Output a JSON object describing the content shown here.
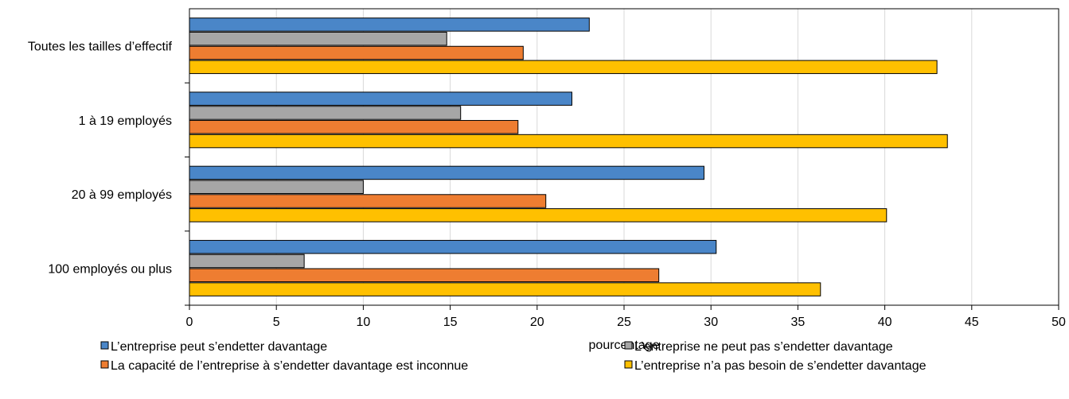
{
  "chart_data": {
    "type": "bar",
    "orientation": "horizontal",
    "categories": [
      "Toutes les tailles d’effectif",
      "1 à 19 employés",
      "20 à 99 employés",
      "100 employés ou plus"
    ],
    "series": [
      {
        "name": "L’entreprise peut s’endetter davantage",
        "color": "#4a86c8",
        "values": [
          23.0,
          22.0,
          29.6,
          30.3
        ]
      },
      {
        "name": "L’entreprise ne peut pas s’endetter davantage",
        "color": "#a6a6a6",
        "values": [
          14.8,
          15.6,
          10.0,
          6.6
        ]
      },
      {
        "name": "La capacité de l’entreprise à s’endetter davantage est inconnue",
        "color": "#ee7d31",
        "values": [
          19.2,
          18.9,
          20.5,
          27.0
        ]
      },
      {
        "name": "L’entreprise n’a pas besoin de s’endetter davantage",
        "color": "#ffc000",
        "values": [
          43.0,
          43.6,
          40.1,
          36.3
        ]
      }
    ],
    "xlabel": "pourcentage",
    "xlim": [
      0,
      50
    ],
    "xticks": [
      0,
      5,
      10,
      15,
      20,
      25,
      30,
      35,
      40,
      45,
      50
    ],
    "grid": "vertical",
    "legend_position": "bottom"
  }
}
